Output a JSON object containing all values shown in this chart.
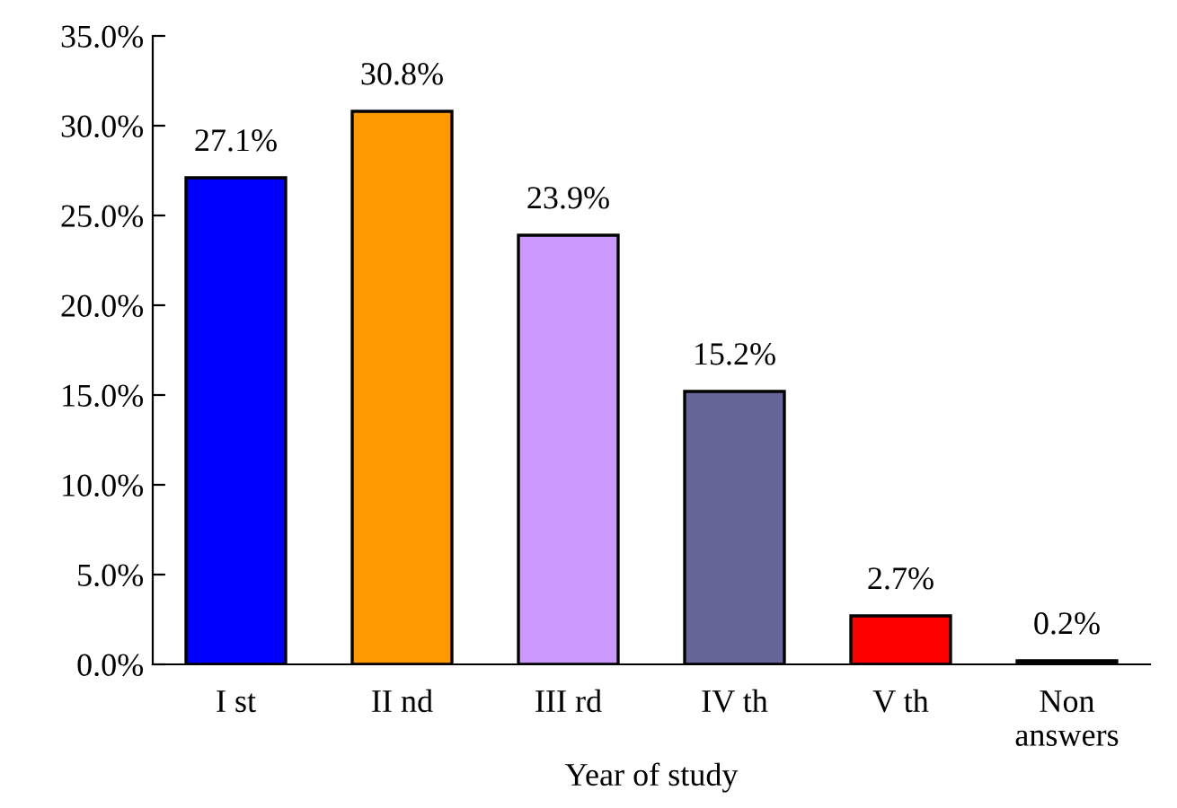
{
  "chart_data": {
    "type": "bar",
    "xlabel": "Year of study",
    "categories": [
      "I st",
      "II nd",
      "III rd",
      "IV th",
      "V th",
      "Non\nanswers"
    ],
    "values": [
      27.1,
      30.8,
      23.9,
      15.2,
      2.7,
      0.2
    ],
    "colors": [
      "#0000ff",
      "#ff9900",
      "#cc99ff",
      "#666699",
      "#ff0000",
      "#000000"
    ],
    "value_labels": [
      "27.1%",
      "30.8%",
      "23.9%",
      "15.2%",
      "2.7%",
      "0.2%"
    ],
    "ylim": [
      0,
      35
    ],
    "yticks": [
      {
        "value": 0,
        "label": "0.0%"
      },
      {
        "value": 5,
        "label": "5.0%"
      },
      {
        "value": 10,
        "label": "10.0%"
      },
      {
        "value": 15,
        "label": "15.0%"
      },
      {
        "value": 20,
        "label": "20.0%"
      },
      {
        "value": 25,
        "label": "25.0%"
      },
      {
        "value": 30,
        "label": "30.0%"
      },
      {
        "value": 35,
        "label": "35.0%"
      }
    ],
    "grid": false
  }
}
